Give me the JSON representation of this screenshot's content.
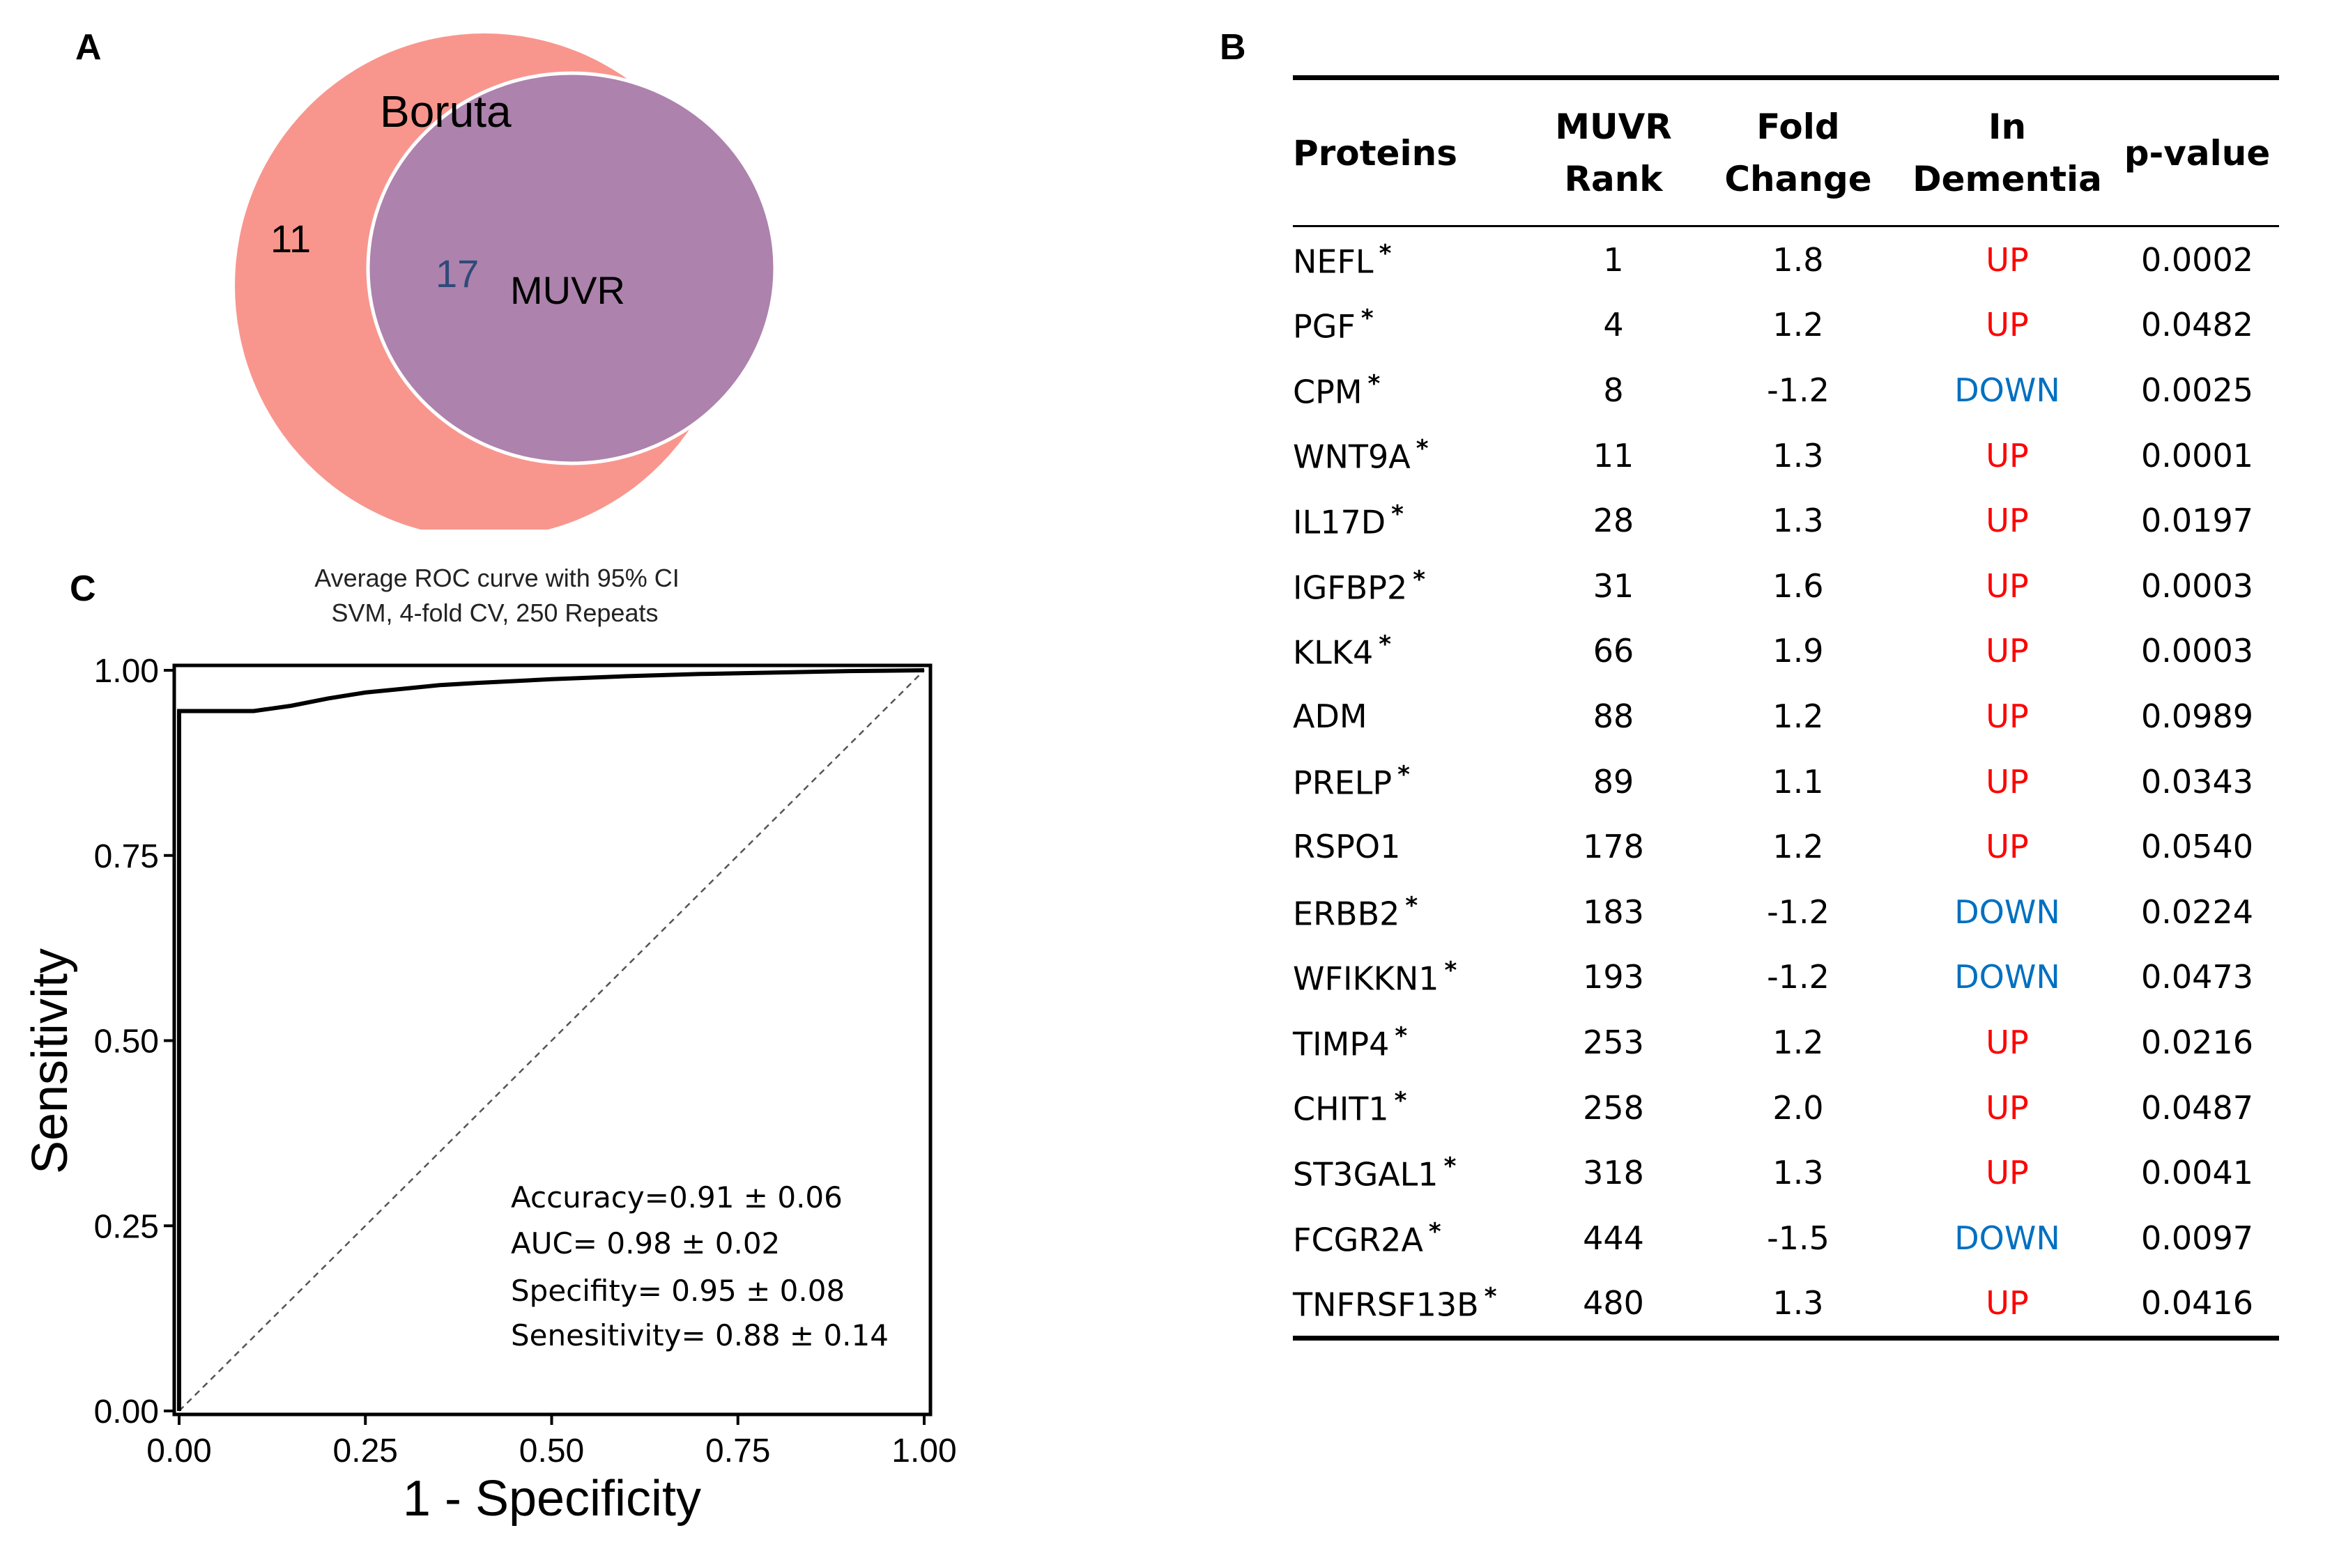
{
  "panels": {
    "a": "A",
    "b": "B",
    "c": "C"
  },
  "venn": {
    "outer_label": "Boruta",
    "inner_label": "MUVR",
    "outer_only_count": "11",
    "overlap_count": "17",
    "outer_color": "#f8968e",
    "inner_color": "#ad82ad"
  },
  "table": {
    "headers": [
      [
        "Proteins"
      ],
      [
        "MUVR",
        "Rank"
      ],
      [
        "Fold",
        "Change"
      ],
      [
        "In",
        "Dementia"
      ],
      [
        "p-value"
      ]
    ],
    "rows": [
      {
        "protein": "NEFL",
        "star": true,
        "rank": "1",
        "fold": "1.8",
        "dir": "UP",
        "p": "0.0002"
      },
      {
        "protein": "PGF",
        "star": true,
        "rank": "4",
        "fold": "1.2",
        "dir": "UP",
        "p": "0.0482"
      },
      {
        "protein": "CPM",
        "star": true,
        "rank": "8",
        "fold": "-1.2",
        "dir": "DOWN",
        "p": "0.0025"
      },
      {
        "protein": "WNT9A",
        "star": true,
        "rank": "11",
        "fold": "1.3",
        "dir": "UP",
        "p": "0.0001"
      },
      {
        "protein": "IL17D",
        "star": true,
        "rank": "28",
        "fold": "1.3",
        "dir": "UP",
        "p": "0.0197"
      },
      {
        "protein": "IGFBP2",
        "star": true,
        "rank": "31",
        "fold": "1.6",
        "dir": "UP",
        "p": "0.0003"
      },
      {
        "protein": "KLK4",
        "star": true,
        "rank": "66",
        "fold": "1.9",
        "dir": "UP",
        "p": "0.0003"
      },
      {
        "protein": "ADM",
        "star": false,
        "rank": "88",
        "fold": "1.2",
        "dir": "UP",
        "p": "0.0989"
      },
      {
        "protein": "PRELP",
        "star": true,
        "rank": "89",
        "fold": "1.1",
        "dir": "UP",
        "p": "0.0343"
      },
      {
        "protein": "RSPO1",
        "star": false,
        "rank": "178",
        "fold": "1.2",
        "dir": "UP",
        "p": "0.0540"
      },
      {
        "protein": "ERBB2",
        "star": true,
        "rank": "183",
        "fold": "-1.2",
        "dir": "DOWN",
        "p": "0.0224"
      },
      {
        "protein": "WFIKKN1",
        "star": true,
        "rank": "193",
        "fold": "-1.2",
        "dir": "DOWN",
        "p": "0.0473"
      },
      {
        "protein": "TIMP4",
        "star": true,
        "rank": "253",
        "fold": "1.2",
        "dir": "UP",
        "p": "0.0216"
      },
      {
        "protein": "CHIT1",
        "star": true,
        "rank": "258",
        "fold": "2.0",
        "dir": "UP",
        "p": "0.0487"
      },
      {
        "protein": "ST3GAL1",
        "star": true,
        "rank": "318",
        "fold": "1.3",
        "dir": "UP",
        "p": "0.0041"
      },
      {
        "protein": "FCGR2A",
        "star": true,
        "rank": "444",
        "fold": "-1.5",
        "dir": "DOWN",
        "p": "0.0097"
      },
      {
        "protein": "TNFRSF13B",
        "star": true,
        "rank": "480",
        "fold": "1.3",
        "dir": "UP",
        "p": "0.0416"
      }
    ],
    "star_symbol": "*",
    "up_color": "#ff0000",
    "down_color": "#0070c0"
  },
  "chart_data": {
    "type": "line",
    "title": "Average ROC curve with 95% CI",
    "subtitle": "SVM, 4-fold CV, 250 Repeats",
    "xlabel": "1 - Specificity",
    "ylabel": "Sensitivity",
    "xlim": [
      0,
      1
    ],
    "ylim": [
      0,
      1
    ],
    "x_ticks": [
      "0.00",
      "0.25",
      "0.50",
      "0.75",
      "1.00"
    ],
    "y_ticks": [
      "0.00",
      "0.25",
      "0.50",
      "0.75",
      "1.00"
    ],
    "grid": false,
    "series": [
      {
        "x": [
          0,
          0,
          0.005,
          0.1,
          0.15,
          0.2,
          0.25,
          0.3,
          0.35,
          0.4,
          0.5,
          0.6,
          0.7,
          0.8,
          0.9,
          1.0
        ],
        "y": [
          0,
          0.945,
          0.945,
          0.945,
          0.952,
          0.962,
          0.97,
          0.975,
          0.98,
          0.983,
          0.988,
          0.992,
          0.995,
          0.997,
          0.999,
          1.0
        ]
      }
    ],
    "reference_line": {
      "x": [
        0,
        1
      ],
      "y": [
        0,
        1
      ],
      "style": "dashed"
    },
    "annotations": [
      "Accuracy=0.91 ± 0.06",
      "AUC= 0.98 ± 0.02",
      "Specifity= 0.95 ±  0.08",
      "Senesitivity= 0.88 ±  0.14"
    ]
  }
}
